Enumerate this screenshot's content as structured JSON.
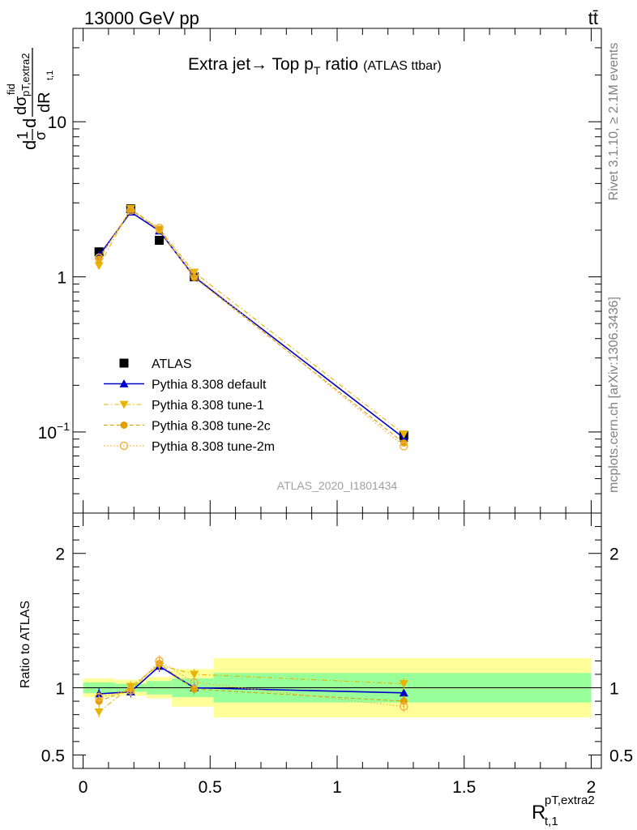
{
  "header": {
    "energy_label": "13000 GeV pp",
    "process_label": "tt̄"
  },
  "side_text": {
    "rivet": "Rivet 3.1.10, ≥ 2.1M events",
    "mcplots": "mcplots.cern.ch [arXiv:1306.3436]"
  },
  "watermark": "ATLAS_2020_I1801434",
  "chart_data": [
    {
      "type": "scatter",
      "panel": "main",
      "title": "Extra jet→ Top p_T ratio",
      "title_parts": {
        "main": "Extra jet",
        "arrow": "→",
        "mid": " Top p",
        "sub": "T",
        "after": " ratio",
        "tag": "(ATLAS ttbar)"
      },
      "ylabel": "1/σ dσ^fid_(pT,extra2) / dR_t,1",
      "ylabel_parts": {
        "d": "d",
        "one": "1",
        "sigma": "σ",
        "dsig": "dσ",
        "fid": "fid",
        "sub": "pT,extra2",
        "dR": "dR",
        "t1": "t,1"
      },
      "yscale": "log",
      "ylim": [
        0.03,
        40
      ],
      "y_ticks": [
        {
          "value": 0.1,
          "label": "10",
          "exp": "−1"
        },
        {
          "value": 1,
          "label": "1",
          "exp": ""
        },
        {
          "value": 10,
          "label": "10",
          "exp": ""
        }
      ],
      "xlim": [
        -0.04,
        2.04
      ],
      "legend_position": "lower-left",
      "x": [
        0.0625,
        0.1875,
        0.3,
        0.4375,
        1.2625
      ],
      "reference": {
        "name": "ATLAS",
        "values": [
          1.45,
          2.75,
          1.72,
          1.0,
          0.095
        ],
        "bin_edges": [
          0.0,
          0.125,
          0.25,
          0.35,
          0.5133,
          2.0
        ]
      },
      "series": [
        {
          "name": "Pythia 8.308 default",
          "color": "#0000cc",
          "marker": "triangle-up",
          "line": "solid",
          "values": [
            1.37,
            2.62,
            1.98,
            1.0,
            0.0915
          ]
        },
        {
          "name": "Pythia 8.308 tune-1",
          "color": "#e8b400",
          "marker": "triangle-down",
          "line": "dashdot",
          "values": [
            1.18,
            2.76,
            2.03,
            1.07,
            0.097
          ]
        },
        {
          "name": "Pythia 8.308 tune-2c",
          "color": "#e0a000",
          "marker": "circle",
          "line": "dashed",
          "values": [
            1.3,
            2.72,
            2.0,
            0.99,
            0.085
          ]
        },
        {
          "name": "Pythia 8.308 tune-2m",
          "color": "#f0b040",
          "marker": "circle-open",
          "line": "dotted",
          "values": [
            1.33,
            2.68,
            2.07,
            1.03,
            0.081
          ]
        }
      ]
    },
    {
      "type": "scatter",
      "panel": "ratio",
      "ylabel": "Ratio to ATLAS",
      "xlabel": "R^(pT,extra2)_t,1",
      "xlabel_parts": {
        "R": "R",
        "sup": "pT,extra2",
        "sub": "t,1"
      },
      "ylim": [
        0.4,
        2.3
      ],
      "y_ticks": [
        {
          "value": 0.5,
          "label": "0.5"
        },
        {
          "value": 1,
          "label": "1"
        },
        {
          "value": 2,
          "label": "2"
        }
      ],
      "x_ticks": [
        {
          "value": 0,
          "label": "0"
        },
        {
          "value": 0.5,
          "label": "0.5"
        },
        {
          "value": 1,
          "label": "1"
        },
        {
          "value": 1.5,
          "label": "1.5"
        },
        {
          "value": 2,
          "label": "2"
        }
      ],
      "xlim": [
        -0.04,
        2.04
      ],
      "bands": {
        "bin_edges": [
          0.0,
          0.125,
          0.25,
          0.35,
          0.5133,
          2.0
        ],
        "green": [
          [
            0.96,
            1.04
          ],
          [
            0.97,
            1.03
          ],
          [
            0.95,
            1.05
          ],
          [
            0.93,
            1.07
          ],
          [
            0.89,
            1.11
          ]
        ],
        "yellow": [
          [
            0.93,
            1.07
          ],
          [
            0.94,
            1.06
          ],
          [
            0.92,
            1.08
          ],
          [
            0.86,
            1.14
          ],
          [
            0.78,
            1.22
          ]
        ]
      },
      "x": [
        0.0625,
        0.1875,
        0.3,
        0.4375,
        1.2625
      ],
      "series": [
        {
          "name": "Pythia 8.308 default",
          "color": "#0000cc",
          "marker": "triangle-up",
          "line": "solid",
          "values": [
            0.955,
            0.97,
            1.16,
            1.0,
            0.962
          ]
        },
        {
          "name": "Pythia 8.308 tune-1",
          "color": "#e8b400",
          "marker": "triangle-down",
          "line": "dashdot",
          "values": [
            0.82,
            1.01,
            1.17,
            1.1,
            1.03
          ]
        },
        {
          "name": "Pythia 8.308 tune-2c",
          "color": "#e0a000",
          "marker": "circle",
          "line": "dashed",
          "values": [
            0.9,
            0.99,
            1.18,
            0.99,
            0.9
          ]
        },
        {
          "name": "Pythia 8.308 tune-2m",
          "color": "#f0b040",
          "marker": "circle-open",
          "line": "dotted",
          "values": [
            0.93,
            0.98,
            1.2,
            1.04,
            0.86
          ]
        }
      ]
    }
  ]
}
